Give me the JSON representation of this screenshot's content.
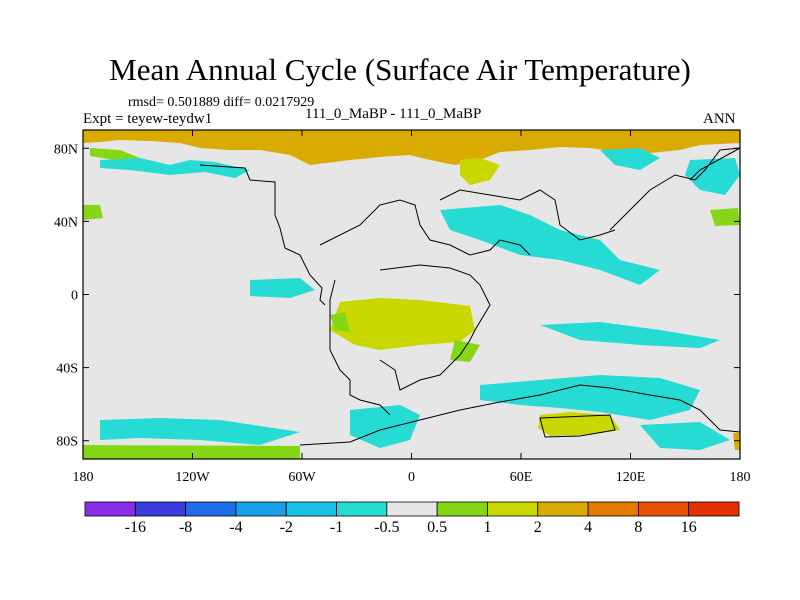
{
  "header": {
    "title": "Mean Annual Cycle (Surface Air Temperature)",
    "stats": "rmsd= 0.501889  diff= 0.0217929",
    "experiment": "Expt = teyew-teydw1",
    "comparison": "111_0_MaBP - 111_0_MaBP",
    "season": "ANN"
  },
  "map": {
    "lat_ticks": [
      "80N",
      "40N",
      "0",
      "40S",
      "80S"
    ],
    "lon_ticks": [
      "180",
      "120W",
      "60W",
      "0",
      "60E",
      "120E",
      "180"
    ],
    "colors": {
      "background": "#e6e6e6",
      "positive_warm": "#d9ab00",
      "positive_mid": "#c8d800",
      "positive_low": "#85d715",
      "negative_low": "#27dbd5",
      "negative_mid": "#19c2e6",
      "coastline": "#000000"
    }
  },
  "colorbar": {
    "labels": [
      "-16",
      "-8",
      "-4",
      "-2",
      "-1",
      "-0.5",
      "0.5",
      "1",
      "2",
      "4",
      "8",
      "16"
    ],
    "colors": [
      "#8b2ee8",
      "#3b3de0",
      "#1e6de6",
      "#1aa0e8",
      "#19c2e6",
      "#27dbd5",
      "#e6e6e6",
      "#85d715",
      "#c8d800",
      "#d9ab00",
      "#e47a00",
      "#e75100",
      "#e43000"
    ]
  }
}
